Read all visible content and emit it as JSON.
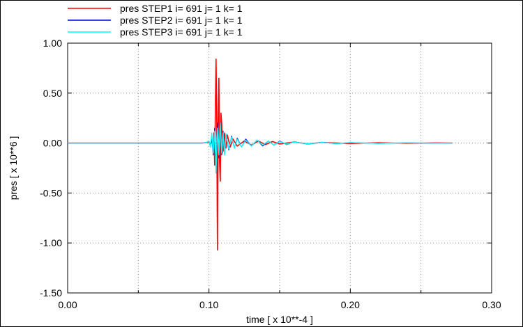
{
  "chart_data": {
    "type": "line",
    "xlabel": "time [ x 10**-4 ]",
    "ylabel": "pres [ x 10**6 ]",
    "xlim": [
      0.0,
      0.3
    ],
    "ylim": [
      -1.5,
      1.0
    ],
    "xticks": [
      0.0,
      0.1,
      0.2,
      0.3
    ],
    "xtick_labels": [
      "0.00",
      "0.10",
      "0.20",
      "0.30"
    ],
    "yticks": [
      -1.5,
      -1.0,
      -0.5,
      0.0,
      0.5,
      1.0
    ],
    "ytick_labels": [
      "-1.50",
      "-1.00",
      "-0.50",
      "0.00",
      "0.50",
      "1.00"
    ],
    "grid": true,
    "legend_position": "top-left above plot",
    "series": [
      {
        "name": "pres STEP1 i= 691 j= 1 k= 1",
        "color": "#ff0000",
        "x": [
          0.0,
          0.09,
          0.095,
          0.098,
          0.1,
          0.101,
          0.102,
          0.103,
          0.1035,
          0.104,
          0.1045,
          0.105,
          0.1055,
          0.106,
          0.1065,
          0.107,
          0.1075,
          0.108,
          0.1085,
          0.109,
          0.1095,
          0.11,
          0.1105,
          0.111,
          0.112,
          0.113,
          0.115,
          0.117,
          0.12,
          0.125,
          0.13,
          0.135,
          0.14,
          0.145,
          0.15,
          0.16,
          0.17,
          0.18,
          0.2,
          0.22,
          0.24,
          0.26,
          0.272
        ],
        "y": [
          0.0,
          0.0,
          0.0,
          0.005,
          0.01,
          -0.02,
          0.03,
          -0.05,
          0.1,
          -0.22,
          0.3,
          0.84,
          0.3,
          -1.07,
          0.2,
          0.65,
          -0.2,
          -0.38,
          0.3,
          0.2,
          -0.1,
          0.05,
          -0.08,
          0.1,
          -0.05,
          0.08,
          -0.04,
          0.04,
          -0.03,
          0.02,
          -0.02,
          0.02,
          -0.015,
          0.015,
          -0.01,
          0.01,
          -0.008,
          0.006,
          -0.005,
          0.004,
          -0.003,
          0.002,
          0.0
        ]
      },
      {
        "name": "pres STEP2 i= 691 j= 1 k= 1",
        "color": "#0000ff",
        "x": [
          0.0,
          0.09,
          0.095,
          0.098,
          0.1,
          0.101,
          0.102,
          0.103,
          0.104,
          0.105,
          0.106,
          0.107,
          0.108,
          0.109,
          0.11,
          0.111,
          0.112,
          0.114,
          0.116,
          0.118,
          0.12,
          0.123,
          0.126,
          0.13,
          0.134,
          0.138,
          0.142,
          0.146,
          0.15,
          0.155,
          0.16,
          0.17,
          0.18,
          0.19,
          0.2,
          0.22,
          0.24,
          0.26,
          0.272
        ],
        "y": [
          0.0,
          0.0,
          0.0,
          0.005,
          0.02,
          -0.03,
          0.06,
          -0.12,
          0.15,
          -0.25,
          0.2,
          -0.15,
          0.18,
          -0.12,
          0.12,
          -0.1,
          0.08,
          -0.07,
          0.07,
          -0.05,
          0.05,
          -0.04,
          0.04,
          -0.03,
          0.03,
          -0.03,
          0.02,
          -0.02,
          0.02,
          -0.015,
          0.012,
          -0.01,
          0.008,
          -0.006,
          0.005,
          -0.004,
          0.003,
          -0.002,
          0.0
        ]
      },
      {
        "name": "pres STEP3 i= 691 j= 1 k= 1",
        "color": "#00ffff",
        "x": [
          0.0,
          0.09,
          0.095,
          0.098,
          0.1,
          0.101,
          0.102,
          0.103,
          0.104,
          0.105,
          0.106,
          0.107,
          0.108,
          0.109,
          0.11,
          0.111,
          0.112,
          0.114,
          0.116,
          0.118,
          0.12,
          0.123,
          0.126,
          0.13,
          0.134,
          0.138,
          0.142,
          0.146,
          0.15,
          0.155,
          0.16,
          0.17,
          0.18,
          0.19,
          0.2,
          0.22,
          0.24,
          0.26,
          0.272
        ],
        "y": [
          0.0,
          0.0,
          0.0,
          0.005,
          0.02,
          -0.04,
          0.1,
          -0.1,
          0.12,
          -0.3,
          0.15,
          -0.12,
          0.2,
          -0.1,
          0.1,
          -0.12,
          0.09,
          -0.06,
          0.06,
          -0.05,
          0.04,
          -0.04,
          0.03,
          -0.03,
          0.03,
          -0.02,
          0.02,
          -0.02,
          0.015,
          -0.012,
          0.01,
          -0.008,
          0.006,
          -0.005,
          0.004,
          -0.003,
          0.002,
          -0.001,
          0.0
        ]
      }
    ]
  }
}
